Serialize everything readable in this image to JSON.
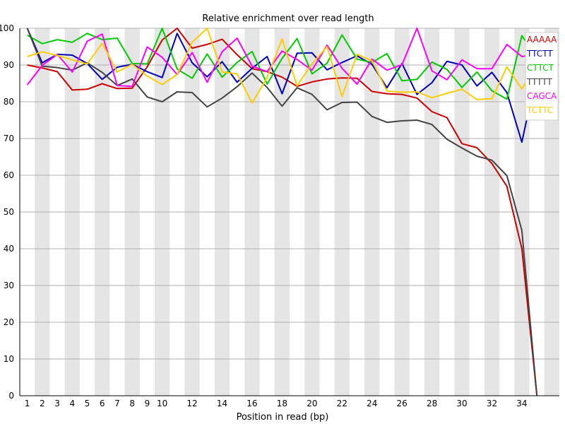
{
  "chart_data": {
    "type": "line",
    "title": "Relative enrichment over read length",
    "xlabel": "Position in read (bp)",
    "ylabel": "",
    "ylim": [
      0,
      100
    ],
    "yticks": [
      0,
      10,
      20,
      30,
      40,
      50,
      60,
      70,
      80,
      90,
      100
    ],
    "x_tick_labels": [
      "1",
      "2",
      "3",
      "4",
      "5",
      "6",
      "7",
      "8",
      "9",
      "10",
      "12",
      "14",
      "16",
      "18",
      "20",
      "22",
      "24",
      "26",
      "28",
      "30",
      "32",
      "34"
    ],
    "grid": "horizontal",
    "legend_position": "right",
    "background_bands": "alternating grey by position",
    "series": [
      {
        "name": "AAAAA",
        "color": "#cc0000",
        "values": [
          90,
          89.2,
          88.2,
          83.2,
          83.4,
          84.9,
          83.6,
          83.7,
          89.5,
          96.8,
          100,
          94.6,
          95.6,
          97,
          92.8,
          89,
          88.2,
          86.7,
          84.2,
          85.4,
          86.2,
          86.5,
          86.4,
          82.8,
          82.2,
          82,
          81,
          77.3,
          75.7,
          68.6,
          67.5,
          63.2,
          57,
          40,
          0
        ]
      },
      {
        "name": "TTCTT",
        "color": "#0000bb",
        "values": [
          100,
          90.6,
          92.9,
          92.7,
          90.4,
          86.1,
          89.4,
          90.2,
          88.2,
          86.6,
          98.6,
          90.6,
          86.8,
          90.9,
          85.3,
          89.1,
          92.3,
          82.2,
          93.2,
          93.3,
          88.7,
          90.7,
          92.5,
          90.2,
          83.8,
          90.4,
          82,
          85.2,
          91,
          90,
          84.3,
          88,
          82.5,
          69,
          88
        ]
      },
      {
        "name": "CTTCT",
        "color": "#00cc00",
        "values": [
          98.1,
          95.8,
          96.9,
          96.2,
          98.6,
          96.9,
          97.3,
          90.4,
          90.3,
          100,
          88.9,
          86.4,
          93,
          86.7,
          90.7,
          93.7,
          84.8,
          91.8,
          97.2,
          87.6,
          90.5,
          98.2,
          91.6,
          90.7,
          93.1,
          85.7,
          86.1,
          90.8,
          88.8,
          83.9,
          88.1,
          83,
          80.7,
          98,
          92
        ]
      },
      {
        "name": "TTTTT",
        "color": "#444444",
        "values": [
          100,
          89.7,
          89.3,
          88.6,
          90.6,
          88,
          84.4,
          86.2,
          81.3,
          80,
          82.7,
          82.5,
          78.6,
          81,
          84.1,
          87.8,
          83.9,
          78.8,
          83.8,
          82,
          77.8,
          79.8,
          79.9,
          76,
          74.4,
          74.8,
          75,
          73.8,
          69.8,
          67.4,
          65.2,
          64.1,
          59.9,
          45,
          0
        ]
      },
      {
        "name": "CAGCA",
        "color": "#ff00ff",
        "values": [
          84.6,
          89.9,
          92.9,
          88.1,
          96.5,
          98.4,
          84.4,
          84.2,
          94.9,
          92.1,
          87.4,
          93.4,
          85.3,
          93.6,
          97.3,
          89.7,
          88.2,
          93.8,
          91.5,
          88.6,
          95.4,
          89.1,
          84.8,
          91.6,
          88.6,
          90.1,
          100,
          88.4,
          86,
          91.4,
          89,
          89,
          95.6,
          92.3,
          93
        ]
      },
      {
        "name": "TCTTC",
        "color": "#ffcc00",
        "values": [
          92.3,
          93.6,
          92.6,
          91.4,
          90.3,
          95.9,
          88.1,
          90.2,
          87,
          84.7,
          87.4,
          96.2,
          100,
          88.1,
          87.6,
          79.7,
          86.6,
          97.1,
          84.3,
          90.3,
          95,
          81.4,
          92.9,
          91.2,
          82.9,
          82.6,
          82.7,
          81.1,
          82.3,
          83.4,
          80.6,
          80.8,
          89.5,
          83.5,
          90
        ]
      }
    ]
  }
}
